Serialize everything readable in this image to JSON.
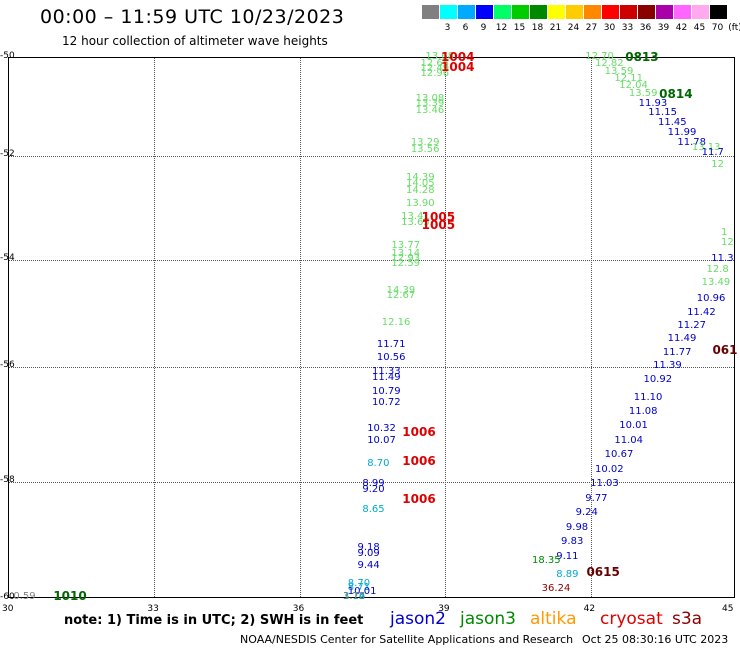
{
  "title": "00:00 – 11:59 UTC 10/23/2023",
  "subtitle": "12 hour collection of altimeter wave heights",
  "colorbar": {
    "unit": "(ft)",
    "ticks": [
      "3",
      "6",
      "9",
      "12",
      "15",
      "18",
      "21",
      "24",
      "27",
      "30",
      "33",
      "36",
      "39",
      "42",
      "45",
      "70"
    ],
    "colors": [
      "#808080",
      "#00ffff",
      "#00aaff",
      "#0000ff",
      "#00ff66",
      "#00cc00",
      "#008800",
      "#ffff00",
      "#ffcc00",
      "#ff8800",
      "#ff0000",
      "#cc0000",
      "#880000",
      "#aa00aa",
      "#ff66ff",
      "#ffaaee",
      "#000000"
    ]
  },
  "chart_data": {
    "type": "scatter",
    "xlim": [
      30,
      45
    ],
    "ylim": [
      -60,
      -50
    ],
    "x_ticks": [
      "30",
      "33",
      "36",
      "39",
      "42",
      "45"
    ],
    "y_ticks": [
      "-50",
      "-52",
      "-54",
      "-56",
      "-58",
      "-60"
    ],
    "grid": true,
    "points": [
      {
        "lon": 38.9,
        "lat": -50.0,
        "v": "13.68",
        "c": "#66dd66"
      },
      {
        "lon": 38.8,
        "lat": -50.15,
        "v": "12.65",
        "c": "#66dd66"
      },
      {
        "lon": 38.8,
        "lat": -50.25,
        "v": "12.49",
        "c": "#66dd66"
      },
      {
        "lon": 38.8,
        "lat": -50.35,
        "v": "12.96",
        "c": "#66dd66"
      },
      {
        "lon": 38.7,
        "lat": -50.85,
        "v": "13.08",
        "c": "#66dd66"
      },
      {
        "lon": 38.7,
        "lat": -50.95,
        "v": "13.39",
        "c": "#66dd66"
      },
      {
        "lon": 38.7,
        "lat": -51.1,
        "v": "13.46",
        "c": "#66dd66"
      },
      {
        "lon": 38.6,
        "lat": -51.75,
        "v": "13.29",
        "c": "#66dd66"
      },
      {
        "lon": 38.6,
        "lat": -51.9,
        "v": "13.56",
        "c": "#66dd66"
      },
      {
        "lon": 38.5,
        "lat": -52.45,
        "v": "14.39",
        "c": "#66dd66"
      },
      {
        "lon": 38.5,
        "lat": -52.55,
        "v": "14.05",
        "c": "#66dd66"
      },
      {
        "lon": 38.5,
        "lat": -52.7,
        "v": "14.28",
        "c": "#66dd66"
      },
      {
        "lon": 38.5,
        "lat": -52.95,
        "v": "13.90",
        "c": "#66dd66"
      },
      {
        "lon": 38.4,
        "lat": -53.2,
        "v": "13.41",
        "c": "#66dd66"
      },
      {
        "lon": 38.4,
        "lat": -53.3,
        "v": "13.65",
        "c": "#66dd66"
      },
      {
        "lon": 38.2,
        "lat": -53.75,
        "v": "13.77",
        "c": "#66dd66"
      },
      {
        "lon": 38.2,
        "lat": -53.9,
        "v": "13.14",
        "c": "#66dd66"
      },
      {
        "lon": 38.2,
        "lat": -54.0,
        "v": "12.93",
        "c": "#66dd66"
      },
      {
        "lon": 38.2,
        "lat": -54.1,
        "v": "12.59",
        "c": "#66dd66"
      },
      {
        "lon": 38.1,
        "lat": -54.6,
        "v": "14.39",
        "c": "#66dd66"
      },
      {
        "lon": 38.1,
        "lat": -54.7,
        "v": "12.67",
        "c": "#66dd66"
      },
      {
        "lon": 38.0,
        "lat": -55.2,
        "v": "12.16",
        "c": "#66dd66"
      },
      {
        "lon": 37.9,
        "lat": -55.6,
        "v": "11.71",
        "c": "#0000cc"
      },
      {
        "lon": 37.9,
        "lat": -55.85,
        "v": "10.56",
        "c": "#0000cc"
      },
      {
        "lon": 37.8,
        "lat": -56.1,
        "v": "11.33",
        "c": "#0000cc"
      },
      {
        "lon": 37.8,
        "lat": -56.2,
        "v": "11.49",
        "c": "#0000cc"
      },
      {
        "lon": 37.8,
        "lat": -56.45,
        "v": "10.79",
        "c": "#0000cc"
      },
      {
        "lon": 37.8,
        "lat": -56.65,
        "v": "10.72",
        "c": "#0000cc"
      },
      {
        "lon": 37.7,
        "lat": -57.1,
        "v": "10.32",
        "c": "#0000cc"
      },
      {
        "lon": 37.7,
        "lat": -57.3,
        "v": "10.07",
        "c": "#0000cc"
      },
      {
        "lon": 37.7,
        "lat": -57.7,
        "v": "8.70",
        "c": "#00aacc"
      },
      {
        "lon": 37.6,
        "lat": -58.05,
        "v": "8.99",
        "c": "#0000cc"
      },
      {
        "lon": 37.6,
        "lat": -58.15,
        "v": "9.20",
        "c": "#0000cc"
      },
      {
        "lon": 37.6,
        "lat": -58.5,
        "v": "8.65",
        "c": "#00aacc"
      },
      {
        "lon": 37.5,
        "lat": -59.15,
        "v": "9.18",
        "c": "#0000cc"
      },
      {
        "lon": 37.5,
        "lat": -59.25,
        "v": "9.09",
        "c": "#0000cc"
      },
      {
        "lon": 37.5,
        "lat": -59.45,
        "v": "9.44",
        "c": "#0000cc"
      },
      {
        "lon": 37.3,
        "lat": -60.85,
        "v": "8.70",
        "c": "#00aacc"
      },
      {
        "lon": 37.3,
        "lat": -60.95,
        "v": "8.71",
        "c": "#00aacc"
      },
      {
        "lon": 37.3,
        "lat": -61.05,
        "v": "10.01",
        "c": "#0000cc"
      },
      {
        "lon": 37.2,
        "lat": -61.5,
        "v": "3.74",
        "c": "#00aacc"
      },
      {
        "lon": 37.2,
        "lat": -61.85,
        "v": "3.16",
        "c": "#00aacc"
      },
      {
        "lon": 37.2,
        "lat": -61.95,
        "v": "1.72",
        "c": "#808080"
      },
      {
        "lon": 30.4,
        "lat": -61.8,
        "v": "0.59",
        "c": "#808080"
      },
      {
        "lon": 42.2,
        "lat": -50.0,
        "v": "12.70",
        "c": "#66dd66"
      },
      {
        "lon": 42.4,
        "lat": -50.15,
        "v": "12.82",
        "c": "#66dd66"
      },
      {
        "lon": 42.6,
        "lat": -50.3,
        "v": "13.59",
        "c": "#66dd66"
      },
      {
        "lon": 42.8,
        "lat": -50.45,
        "v": "12.11",
        "c": "#66dd66"
      },
      {
        "lon": 42.9,
        "lat": -50.6,
        "v": "12.04",
        "c": "#66dd66"
      },
      {
        "lon": 43.1,
        "lat": -50.75,
        "v": "13.59",
        "c": "#66dd66"
      },
      {
        "lon": 43.3,
        "lat": -50.95,
        "v": "11.93",
        "c": "#0000cc"
      },
      {
        "lon": 43.5,
        "lat": -51.15,
        "v": "11.15",
        "c": "#0000cc"
      },
      {
        "lon": 43.7,
        "lat": -51.35,
        "v": "11.45",
        "c": "#0000cc"
      },
      {
        "lon": 43.9,
        "lat": -51.55,
        "v": "11.99",
        "c": "#0000cc"
      },
      {
        "lon": 44.1,
        "lat": -51.75,
        "v": "11.78",
        "c": "#0000cc"
      },
      {
        "lon": 44.4,
        "lat": -51.85,
        "v": "13.13",
        "c": "#66dd66"
      },
      {
        "lon": 44.6,
        "lat": -51.95,
        "v": "11.7",
        "c": "#0000cc"
      },
      {
        "lon": 44.8,
        "lat": -52.2,
        "v": "12",
        "c": "#66dd66"
      },
      {
        "lon": 45.0,
        "lat": -53.5,
        "v": "1",
        "c": "#66dd66"
      },
      {
        "lon": 45.0,
        "lat": -53.7,
        "v": "12",
        "c": "#66dd66"
      },
      {
        "lon": 44.8,
        "lat": -54.0,
        "v": "11.3",
        "c": "#0000cc"
      },
      {
        "lon": 44.7,
        "lat": -54.2,
        "v": "12.8",
        "c": "#66dd66"
      },
      {
        "lon": 44.6,
        "lat": -54.45,
        "v": "13.49",
        "c": "#66dd66"
      },
      {
        "lon": 44.5,
        "lat": -54.75,
        "v": "10.96",
        "c": "#0000cc"
      },
      {
        "lon": 44.3,
        "lat": -55.0,
        "v": "11.42",
        "c": "#0000cc"
      },
      {
        "lon": 44.1,
        "lat": -55.25,
        "v": "11.27",
        "c": "#0000cc"
      },
      {
        "lon": 43.9,
        "lat": -55.5,
        "v": "11.49",
        "c": "#0000cc"
      },
      {
        "lon": 43.8,
        "lat": -55.75,
        "v": "11.77",
        "c": "#0000cc"
      },
      {
        "lon": 43.6,
        "lat": -56.0,
        "v": "11.39",
        "c": "#0000cc"
      },
      {
        "lon": 43.4,
        "lat": -56.25,
        "v": "10.92",
        "c": "#0000cc"
      },
      {
        "lon": 43.2,
        "lat": -56.55,
        "v": "11.10",
        "c": "#0000cc"
      },
      {
        "lon": 43.1,
        "lat": -56.8,
        "v": "11.08",
        "c": "#0000cc"
      },
      {
        "lon": 42.9,
        "lat": -57.05,
        "v": "10.01",
        "c": "#0000cc"
      },
      {
        "lon": 42.8,
        "lat": -57.3,
        "v": "11.04",
        "c": "#0000cc"
      },
      {
        "lon": 42.6,
        "lat": -57.55,
        "v": "10.67",
        "c": "#0000cc"
      },
      {
        "lon": 42.4,
        "lat": -57.8,
        "v": "10.02",
        "c": "#0000cc"
      },
      {
        "lon": 42.3,
        "lat": -58.05,
        "v": "11.03",
        "c": "#0000cc"
      },
      {
        "lon": 42.2,
        "lat": -58.3,
        "v": "9.77",
        "c": "#0000cc"
      },
      {
        "lon": 42.0,
        "lat": -58.55,
        "v": "9.24",
        "c": "#0000cc"
      },
      {
        "lon": 41.8,
        "lat": -58.8,
        "v": "9.98",
        "c": "#0000cc"
      },
      {
        "lon": 41.7,
        "lat": -59.05,
        "v": "9.83",
        "c": "#0000cc"
      },
      {
        "lon": 41.6,
        "lat": -59.3,
        "v": "9.11",
        "c": "#0000cc"
      },
      {
        "lon": 41.6,
        "lat": -59.6,
        "v": "8.89",
        "c": "#00aacc"
      },
      {
        "lon": 41.3,
        "lat": -59.85,
        "v": "36.24",
        "c": "#880000"
      },
      {
        "lon": 41.1,
        "lat": -60.2,
        "v": "18.35",
        "c": "#008800"
      }
    ],
    "buoys": [
      {
        "lon": 39.1,
        "lat": -50.0,
        "v": "1004",
        "c": "#dd0000"
      },
      {
        "lon": 39.1,
        "lat": -50.2,
        "v": "1004",
        "c": "#dd0000"
      },
      {
        "lon": 38.7,
        "lat": -53.2,
        "v": "1005",
        "c": "#dd0000"
      },
      {
        "lon": 38.7,
        "lat": -53.35,
        "v": "1005",
        "c": "#dd0000"
      },
      {
        "lon": 38.3,
        "lat": -57.15,
        "v": "1006",
        "c": "#dd0000"
      },
      {
        "lon": 38.3,
        "lat": -57.65,
        "v": "1006",
        "c": "#dd0000"
      },
      {
        "lon": 38.3,
        "lat": -58.3,
        "v": "1006",
        "c": "#dd0000"
      },
      {
        "lon": 42.9,
        "lat": -50.0,
        "v": "0813",
        "c": "#006600"
      },
      {
        "lon": 43.6,
        "lat": -50.75,
        "v": "0814",
        "c": "#006600"
      },
      {
        "lon": 44.7,
        "lat": -55.7,
        "v": "061",
        "c": "#660000"
      },
      {
        "lon": 42.1,
        "lat": -59.55,
        "v": "0615",
        "c": "#660000"
      },
      {
        "lon": 31.1,
        "lat": -61.8,
        "v": "1010",
        "c": "#006600"
      }
    ]
  },
  "note": "note: 1) Time is in UTC; 2) SWH is in feet",
  "satellites": [
    {
      "name": "jason2",
      "color": "#0000cc"
    },
    {
      "name": "jason3",
      "color": "#008800"
    },
    {
      "name": "altika",
      "color": "#ff9900"
    },
    {
      "name": "cryosat",
      "color": "#dd0000"
    },
    {
      "name": "s3a",
      "color": "#880000"
    }
  ],
  "credit": "NOAA/NESDIS Center for Satellite Applications and Research",
  "timestamp": "Oct 25 08:30:16 UTC 2023"
}
